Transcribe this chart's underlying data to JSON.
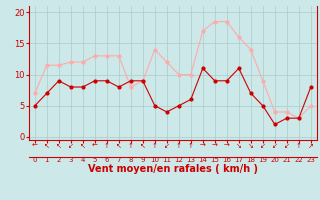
{
  "x": [
    0,
    1,
    2,
    3,
    4,
    5,
    6,
    7,
    8,
    9,
    10,
    11,
    12,
    13,
    14,
    15,
    16,
    17,
    18,
    19,
    20,
    21,
    22,
    23
  ],
  "vent_moyen": [
    5,
    7,
    9,
    8,
    8,
    9,
    9,
    8,
    9,
    9,
    5,
    4,
    5,
    6,
    11,
    9,
    9,
    11,
    7,
    5,
    2,
    3,
    3,
    8
  ],
  "rafales": [
    7,
    11.5,
    11.5,
    12,
    12,
    13,
    13,
    13,
    8,
    9,
    14,
    12,
    10,
    10,
    17,
    18.5,
    18.5,
    16,
    14,
    9,
    4,
    4,
    3,
    5
  ],
  "moyen_color": "#cc0000",
  "rafales_color": "#ffaaaa",
  "bg_color": "#cce8e8",
  "grid_color": "#aacccc",
  "axis_color": "#cc0000",
  "ylabel_ticks": [
    0,
    5,
    10,
    15,
    20
  ],
  "xlabel": "Vent moyen/en rafales ( km/h )",
  "ylim": [
    -0.5,
    21
  ],
  "xlim": [
    -0.5,
    23.5
  ],
  "tick_fontsize": 6,
  "label_fontsize": 7,
  "direction_chars": [
    "←",
    "↖",
    "↖",
    "↙",
    "↖",
    "←",
    "↑",
    "↖",
    "↑",
    "↖",
    "↑",
    "↙",
    "↑",
    "↑",
    "→",
    "→",
    "→",
    "↘",
    "↘",
    "↙",
    "↙",
    "↙",
    "↑",
    "↗"
  ]
}
